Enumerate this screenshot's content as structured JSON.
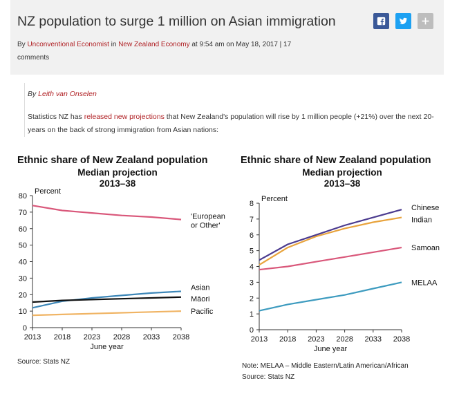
{
  "article": {
    "title": "NZ population to surge 1 million on Asian immigration",
    "byline": {
      "by": "By ",
      "author": "Unconventional Economist",
      "in": " in ",
      "category": "New Zealand Economy",
      "time": " at 9:54 am on May 18, 2017 | 17 comments"
    },
    "author_line": {
      "by": "By ",
      "name": "Leith van Onselen"
    },
    "intro": {
      "before": "Statistics NZ has ",
      "link": "released new projections",
      "after": " that New Zealand's population will rise by 1 million people (+21%) over the next 20-years on the back of strong immigration from Asian nations:"
    }
  },
  "share": {
    "facebook_icon": "facebook-icon",
    "twitter_icon": "twitter-icon",
    "plus_icon": "plus-icon",
    "colors": {
      "facebook": "#3b5998",
      "twitter": "#1da1f2",
      "plus": "#bdbdbd"
    }
  },
  "chart_data": [
    {
      "type": "line",
      "title": "Ethnic share of New Zealand population",
      "subtitle": "Median projection",
      "period": "2013–38",
      "ylabel": "Percent",
      "xlabel": "June year",
      "source": "Source: Stats NZ",
      "ylim": [
        0,
        80
      ],
      "yticks": [
        0,
        10,
        20,
        30,
        40,
        50,
        60,
        70,
        80
      ],
      "xticks": [
        2013,
        2018,
        2023,
        2028,
        2033,
        2038
      ],
      "x": [
        2013,
        2018,
        2023,
        2028,
        2033,
        2038
      ],
      "series": [
        {
          "name": "'European or Other'",
          "label_lines": [
            "'European",
            "or Other'"
          ],
          "color": "#d9577a",
          "values": [
            74,
            71,
            69.5,
            68,
            67,
            65.5
          ]
        },
        {
          "name": "Asian",
          "label_lines": [
            "Asian"
          ],
          "color": "#3d87b8",
          "values": [
            12,
            16,
            18,
            19.5,
            21,
            22
          ]
        },
        {
          "name": "Māori",
          "label_lines": [
            "Māori"
          ],
          "color": "#111111",
          "values": [
            15.5,
            16.5,
            17,
            17.5,
            18,
            18.5
          ]
        },
        {
          "name": "Pacific",
          "label_lines": [
            "Pacific"
          ],
          "color": "#f0b464",
          "values": [
            7.5,
            8,
            8.5,
            9,
            9.5,
            10
          ]
        }
      ]
    },
    {
      "type": "line",
      "title": "Ethnic share of New Zealand population",
      "subtitle": "Median projection",
      "period": "2013–38",
      "ylabel": "Percent",
      "xlabel": "June year",
      "note": "Note: MELAA – Middle Eastern/Latin American/African",
      "source": "Source: Stats NZ",
      "ylim": [
        0,
        8
      ],
      "yticks": [
        0,
        1,
        2,
        3,
        4,
        5,
        6,
        7,
        8
      ],
      "xticks": [
        2013,
        2018,
        2023,
        2028,
        2033,
        2038
      ],
      "x": [
        2013,
        2018,
        2023,
        2028,
        2033,
        2038
      ],
      "series": [
        {
          "name": "Chinese",
          "label_lines": [
            "Chinese"
          ],
          "color": "#4b3b8f",
          "values": [
            4.4,
            5.4,
            6.0,
            6.6,
            7.1,
            7.6
          ]
        },
        {
          "name": "Indian",
          "label_lines": [
            "Indian"
          ],
          "color": "#e8a33c",
          "values": [
            4.1,
            5.2,
            5.9,
            6.4,
            6.8,
            7.1
          ]
        },
        {
          "name": "Samoan",
          "label_lines": [
            "Samoan"
          ],
          "color": "#d9577a",
          "values": [
            3.8,
            4.0,
            4.3,
            4.6,
            4.9,
            5.2
          ]
        },
        {
          "name": "MELAA",
          "label_lines": [
            "MELAA"
          ],
          "color": "#3d9bbf",
          "values": [
            1.2,
            1.6,
            1.9,
            2.2,
            2.6,
            3.0
          ]
        }
      ]
    }
  ]
}
